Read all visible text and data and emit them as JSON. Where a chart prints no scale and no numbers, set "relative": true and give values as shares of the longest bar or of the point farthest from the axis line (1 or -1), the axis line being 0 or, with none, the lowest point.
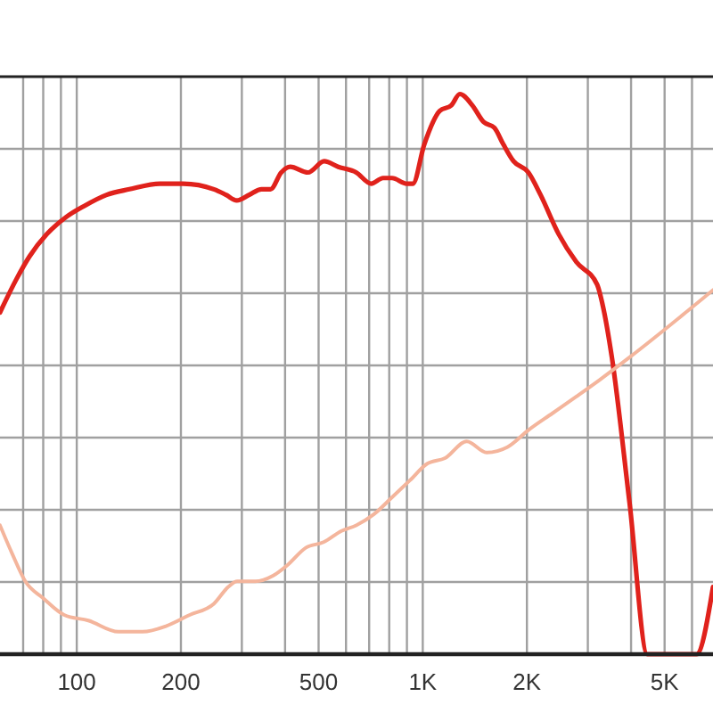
{
  "chart_data": {
    "type": "line",
    "relative": true,
    "log": "x",
    "grid": true,
    "xlim": [
      60,
      6900
    ],
    "xticks": [
      {
        "value": 70,
        "label": null
      },
      {
        "value": 80,
        "label": null
      },
      {
        "value": 90,
        "label": null
      },
      100,
      200,
      {
        "value": 300,
        "label": null
      },
      {
        "value": 400,
        "label": null
      },
      500,
      {
        "value": 600,
        "label": null
      },
      {
        "value": 700,
        "label": null
      },
      {
        "value": 800,
        "label": null
      },
      {
        "value": 900,
        "label": null
      },
      {
        "value": 1000,
        "label": "1K"
      },
      {
        "value": 2000,
        "label": "2K"
      },
      {
        "value": 3000,
        "label": null
      },
      {
        "value": 4000,
        "label": null
      },
      {
        "value": 5000,
        "label": "5K"
      },
      {
        "value": 6000,
        "label": null
      }
    ],
    "series": [
      {
        "color": "#e0221c",
        "x": [
          60,
          67,
          73,
          82,
          93,
          105,
          122,
          142,
          174,
          203,
          249,
          270,
          290,
          315,
          342,
          363,
          390,
          414,
          466,
          519,
          570,
          642,
          709,
          768,
          815,
          899,
          936,
          1010,
          1120,
          1210,
          1280,
          1390,
          1500,
          1610,
          1710,
          1830,
          2020,
          2190,
          2470,
          2780,
          3190,
          3320,
          3520,
          3960,
          4460,
          4650,
          6180,
          6900
        ],
        "values": [
          0.61,
          0.67,
          0.71,
          0.75,
          0.78,
          0.8,
          0.82,
          0.83,
          0.84,
          0.84,
          0.83,
          0.82,
          0.81,
          0.82,
          0.83,
          0.83,
          0.86,
          0.87,
          0.86,
          0.88,
          0.87,
          0.86,
          0.84,
          0.85,
          0.85,
          0.84,
          0.84,
          0.91,
          0.97,
          0.98,
          1.0,
          0.98,
          0.95,
          0.94,
          0.91,
          0.88,
          0.86,
          0.82,
          0.75,
          0.7,
          0.66,
          0.62,
          0.53,
          0.27,
          0,
          0,
          0,
          0.12
        ]
      },
      {
        "color": "#f4b59c",
        "x": [
          60,
          65,
          71,
          80,
          92,
          108,
          132,
          155,
          181,
          212,
          249,
          274,
          291,
          328,
          369,
          408,
          459,
          517,
          582,
          642,
          723,
          815,
          917,
          1030,
          1160,
          1340,
          1530,
          1760,
          2020,
          2370,
          2780,
          3250,
          3960,
          6900
        ],
        "values": [
          0.23,
          0.18,
          0.13,
          0.1,
          0.07,
          0.06,
          0.04,
          0.04,
          0.05,
          0.07,
          0.09,
          0.12,
          0.13,
          0.13,
          0.14,
          0.16,
          0.19,
          0.2,
          0.22,
          0.23,
          0.25,
          0.28,
          0.31,
          0.34,
          0.35,
          0.38,
          0.36,
          0.37,
          0.4,
          0.43,
          0.46,
          0.49,
          0.53,
          0.65
        ]
      }
    ]
  }
}
